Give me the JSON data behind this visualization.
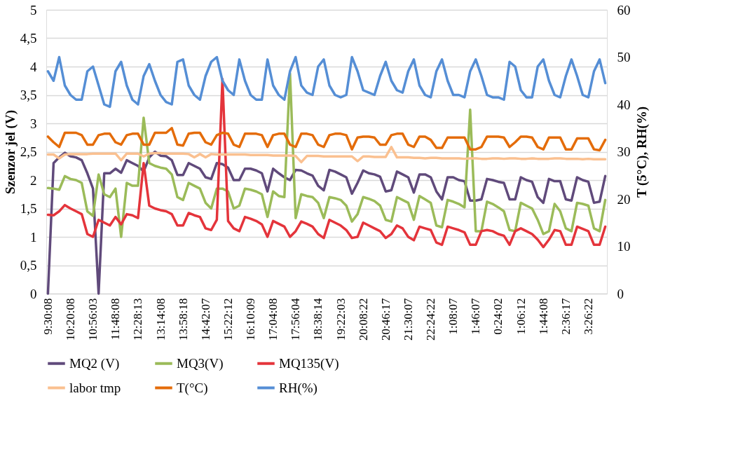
{
  "chart_data": {
    "type": "line",
    "ylabel": "Szenzor jel (V)",
    "y2label": "T (5°C), RH(%)",
    "categories": [
      "9:30:08",
      null,
      null,
      null,
      "10:20:08",
      null,
      null,
      null,
      "10:56:03",
      null,
      null,
      null,
      "11:48:08",
      null,
      null,
      null,
      "12:28:13",
      null,
      null,
      null,
      "13:14:08",
      null,
      null,
      null,
      "13:58:18",
      null,
      null,
      null,
      "14:42:07",
      null,
      null,
      null,
      "15:22:12",
      null,
      null,
      null,
      "16:10:09",
      null,
      null,
      null,
      "17:04:08",
      null,
      null,
      null,
      "17:56:04",
      null,
      null,
      null,
      "18:38:14",
      null,
      null,
      null,
      "19:22:03",
      null,
      null,
      null,
      "20:08:22",
      null,
      null,
      null,
      "20:46:17",
      null,
      null,
      null,
      "21:30:07",
      null,
      null,
      null,
      "22:24:22",
      null,
      null,
      null,
      "1:08:07",
      null,
      null,
      null,
      "1:46:07",
      null,
      null,
      null,
      "0:24:02",
      null,
      null,
      null,
      "1:06:12",
      null,
      null,
      null,
      "1:44:08",
      null,
      null,
      null,
      "2:36:17",
      null,
      null,
      null,
      "3:26:22",
      null,
      null,
      null
    ],
    "series": [
      {
        "name": "MQ2 (V)",
        "color": "#604a7b",
        "values": [
          0,
          2.3,
          2.4,
          2.48,
          2.42,
          2.4,
          2.35,
          2.12,
          1.85,
          0,
          2.12,
          2.12,
          2.2,
          2.13,
          2.35,
          2.3,
          2.25,
          2.15,
          2.4,
          2.5,
          2.43,
          2.42,
          2.35,
          2.09,
          2.09,
          2.3,
          2.25,
          2.2,
          2.05,
          2.02,
          2.3,
          2.28,
          2.22,
          2.0,
          2.0,
          2.2,
          2.2,
          2.17,
          2.12,
          1.8,
          2.2,
          2.12,
          2.05,
          2.0,
          2.18,
          2.17,
          2.12,
          2.08,
          1.9,
          1.82,
          2.18,
          2.15,
          2.1,
          2.05,
          1.76,
          1.95,
          2.17,
          2.12,
          2.1,
          2.06,
          1.8,
          1.82,
          2.15,
          2.1,
          2.05,
          1.78,
          2.1,
          2.1,
          2.05,
          1.8,
          1.66,
          2.05,
          2.05,
          2.0,
          1.98,
          1.64,
          1.64,
          1.66,
          2.02,
          2.0,
          1.97,
          1.95,
          1.66,
          1.66,
          2.05,
          2.0,
          1.97,
          1.7,
          1.6,
          2.02,
          1.98,
          1.98,
          1.66,
          1.64,
          2.05,
          2.0,
          1.97,
          1.6,
          1.62,
          2.07
        ]
      },
      {
        "name": "MQ3(V)",
        "color": "#9bbb59",
        "values": [
          1.86,
          1.85,
          1.83,
          2.07,
          2.02,
          2.0,
          1.95,
          1.45,
          1.37,
          2.1,
          1.75,
          1.7,
          1.85,
          1.0,
          1.95,
          1.9,
          1.9,
          3.1,
          2.3,
          2.25,
          2.22,
          2.2,
          2.1,
          1.7,
          1.65,
          1.95,
          1.9,
          1.85,
          1.6,
          1.5,
          1.85,
          1.85,
          1.8,
          1.5,
          1.55,
          1.85,
          1.83,
          1.8,
          1.75,
          1.35,
          1.8,
          1.72,
          1.7,
          3.88,
          1.33,
          1.75,
          1.72,
          1.7,
          1.6,
          1.33,
          1.7,
          1.68,
          1.65,
          1.55,
          1.27,
          1.4,
          1.7,
          1.67,
          1.63,
          1.55,
          1.3,
          1.27,
          1.7,
          1.65,
          1.6,
          1.3,
          1.72,
          1.66,
          1.6,
          1.2,
          1.17,
          1.65,
          1.62,
          1.58,
          1.52,
          3.24,
          1.1,
          1.1,
          1.62,
          1.58,
          1.52,
          1.45,
          1.12,
          1.1,
          1.6,
          1.55,
          1.5,
          1.3,
          1.05,
          1.1,
          1.58,
          1.45,
          1.15,
          1.1,
          1.6,
          1.58,
          1.55,
          1.15,
          1.1,
          1.65
        ]
      },
      {
        "name": "MQ135(V)",
        "color": "#e4343b",
        "values": [
          1.39,
          1.38,
          1.45,
          1.56,
          1.5,
          1.45,
          1.4,
          1.05,
          1.0,
          1.3,
          1.25,
          1.2,
          1.35,
          1.22,
          1.4,
          1.38,
          1.33,
          2.3,
          1.55,
          1.5,
          1.47,
          1.45,
          1.4,
          1.2,
          1.2,
          1.42,
          1.38,
          1.35,
          1.15,
          1.12,
          1.3,
          3.78,
          1.28,
          1.15,
          1.1,
          1.35,
          1.32,
          1.28,
          1.22,
          1.0,
          1.28,
          1.23,
          1.18,
          1.0,
          1.1,
          1.27,
          1.23,
          1.18,
          1.05,
          0.98,
          1.3,
          1.25,
          1.2,
          1.12,
          0.98,
          1.0,
          1.25,
          1.2,
          1.15,
          1.1,
          0.98,
          1.05,
          1.2,
          1.15,
          1.0,
          0.94,
          1.18,
          1.15,
          1.12,
          0.9,
          0.86,
          1.18,
          1.15,
          1.12,
          1.08,
          0.86,
          0.86,
          1.1,
          1.12,
          1.1,
          1.05,
          1.02,
          0.86,
          1.1,
          1.15,
          1.1,
          1.05,
          0.95,
          0.82,
          0.95,
          1.12,
          1.1,
          0.86,
          0.86,
          1.18,
          1.14,
          1.1,
          0.86,
          0.86,
          1.18
        ]
      },
      {
        "name": "labor tmp",
        "color": "#fac090",
        "axis": "y2",
        "values": [
          29.4,
          29.4,
          28.6,
          29.4,
          29.5,
          29.5,
          29.5,
          29.5,
          29.6,
          29.6,
          29.6,
          29.6,
          29.6,
          28.2,
          29.6,
          29.6,
          29.6,
          29.0,
          29.6,
          29.7,
          29.7,
          29.6,
          29.6,
          29.6,
          29.6,
          29.5,
          28.8,
          29.5,
          28.8,
          29.5,
          29.4,
          29.4,
          29.4,
          29.4,
          29.4,
          29.4,
          29.3,
          29.3,
          29.3,
          29.3,
          29.2,
          29.2,
          29.2,
          29.2,
          29.1,
          27.8,
          29.1,
          29.1,
          29.1,
          29.0,
          29.0,
          29.0,
          29.0,
          29.0,
          29.0,
          28.0,
          29.0,
          29.0,
          28.9,
          28.9,
          28.9,
          31.0,
          28.8,
          28.8,
          28.8,
          28.7,
          28.7,
          28.6,
          28.7,
          28.7,
          28.6,
          28.6,
          28.6,
          28.6,
          28.5,
          28.6,
          28.6,
          28.5,
          28.5,
          28.6,
          28.6,
          28.5,
          28.6,
          28.6,
          28.5,
          28.5,
          28.6,
          28.5,
          28.5,
          28.5,
          28.6,
          28.6,
          28.5,
          28.5,
          28.5,
          28.4,
          28.5,
          28.4,
          28.4,
          28.4
        ]
      },
      {
        "name": "T(°C)",
        "color": "#e46c0a",
        "axis": "y2",
        "values": [
          33.2,
          32,
          31,
          34,
          34,
          34,
          33.5,
          31.5,
          31.5,
          33.5,
          33.8,
          33.8,
          32,
          31.5,
          33.5,
          33.8,
          33.8,
          31.5,
          31.5,
          34,
          34,
          34,
          35,
          31.5,
          31.3,
          33.8,
          34,
          34,
          32,
          31.5,
          33.5,
          34,
          33.8,
          31.5,
          31,
          33.8,
          33.8,
          33.8,
          33.5,
          31,
          33.5,
          33.8,
          33.8,
          31.5,
          31,
          33.8,
          33.8,
          33.5,
          31.5,
          31,
          33.5,
          33.8,
          33.8,
          33.5,
          30.5,
          33,
          33.2,
          33.2,
          33,
          31.5,
          31.5,
          33.5,
          33.8,
          33.8,
          31.5,
          31,
          33.2,
          33.2,
          32.5,
          30.8,
          30.8,
          33,
          33,
          33,
          33,
          30.5,
          30.5,
          31,
          33.2,
          33.2,
          33.2,
          33,
          31,
          32,
          33.2,
          33.2,
          33,
          31,
          30.5,
          33,
          33,
          33,
          30.5,
          30.5,
          32.8,
          32.8,
          32.8,
          30.5,
          30.3,
          32.5
        ]
      },
      {
        "name": "RH(%)",
        "color": "#558ed5",
        "axis": "y2",
        "values": [
          47,
          45,
          50,
          44,
          42,
          41,
          41,
          47,
          48,
          44,
          40,
          39.5,
          47,
          49,
          44,
          41,
          40,
          46,
          48.5,
          45,
          42,
          40.5,
          40,
          49,
          49.5,
          44,
          42,
          41,
          46,
          49,
          50,
          45,
          43,
          42,
          49.5,
          45,
          42,
          41,
          41,
          49.5,
          44,
          42,
          41,
          47,
          50,
          44,
          42.5,
          42,
          48,
          49.5,
          44,
          42,
          41.5,
          42,
          50,
          47,
          43,
          42.5,
          42,
          46,
          49,
          45,
          43,
          42.5,
          47,
          49.5,
          44,
          42,
          41.5,
          47,
          49.5,
          45,
          42,
          42,
          41.5,
          47,
          49.5,
          46,
          42,
          41.5,
          41.5,
          41,
          49,
          48,
          43,
          41.5,
          41.5,
          48,
          49.5,
          45,
          42,
          41.5,
          46,
          49.5,
          46,
          42,
          41.5,
          47,
          49.5,
          44.5
        ]
      }
    ],
    "ylim": [
      0,
      5
    ],
    "yticks": [
      0,
      {
        "value": 0.5,
        "label": "0,5"
      },
      1,
      {
        "value": 1.5,
        "label": "1,5"
      },
      2,
      {
        "value": 2.5,
        "label": "2,5"
      },
      3,
      {
        "value": 3.5,
        "label": "3,5"
      },
      4,
      {
        "value": 4.5,
        "label": "4,5"
      },
      5
    ],
    "y2lim": [
      0,
      60
    ],
    "y2ticks": [
      0,
      10,
      20,
      30,
      40,
      50,
      60
    ],
    "grid": "y",
    "legend": "bottom",
    "marker": "none",
    "line_style": "solid"
  }
}
